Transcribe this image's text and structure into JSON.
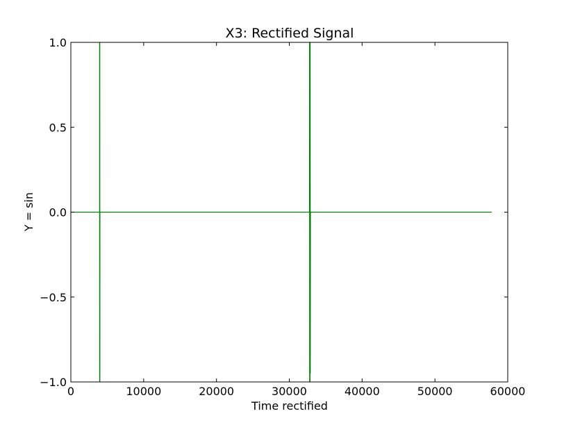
{
  "chart_data": {
    "type": "line",
    "title": "X3: Rectified Signal",
    "xlabel": "Time rectified",
    "ylabel": "Y = sin",
    "xlim": [
      0,
      60000
    ],
    "ylim": [
      -1.0,
      1.0
    ],
    "x_ticks": [
      0,
      10000,
      20000,
      30000,
      40000,
      50000,
      60000
    ],
    "x_tick_labels": [
      "0",
      "10000",
      "20000",
      "30000",
      "40000",
      "50000",
      "60000"
    ],
    "y_ticks": [
      -1.0,
      -0.5,
      0.0,
      0.5,
      1.0
    ],
    "y_tick_labels": [
      "−1.0",
      "−0.5",
      "0.0",
      "0.5",
      "1.0"
    ],
    "grid": false,
    "legend": "none",
    "series": [
      {
        "color": "#008000",
        "points": [
          [
            0,
            0.0
          ],
          [
            3950,
            0.0
          ],
          [
            3950,
            1.0
          ],
          [
            3960,
            -1.0
          ],
          [
            3970,
            1.0
          ],
          [
            3980,
            -1.0
          ],
          [
            3990,
            0.0
          ],
          [
            32780,
            0.0
          ],
          [
            32790,
            1.0
          ],
          [
            32800,
            -1.0
          ],
          [
            32820,
            1.0
          ],
          [
            32840,
            -1.0
          ],
          [
            32860,
            1.0
          ],
          [
            32880,
            -0.95
          ],
          [
            32900,
            0.0
          ],
          [
            57800,
            0.0
          ]
        ]
      }
    ]
  }
}
